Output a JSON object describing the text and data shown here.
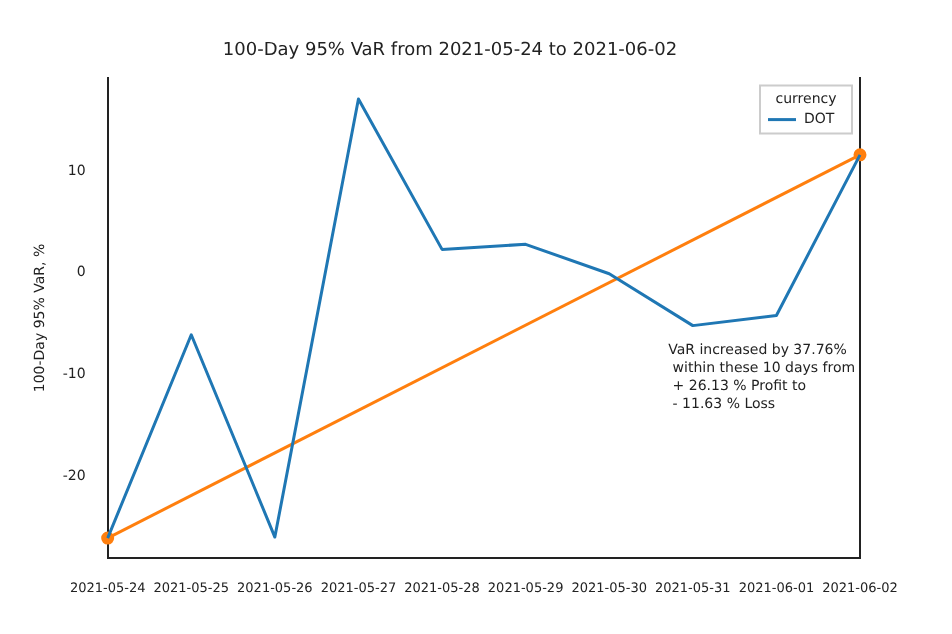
{
  "chart_data": {
    "type": "line",
    "title": "100-Day 95% VaR from 2021-05-24 to 2021-06-02",
    "ylabel": "100-Day 95% VaR, %",
    "legend_title": "currency",
    "categories": [
      "2021-05-24",
      "2021-05-25",
      "2021-05-26",
      "2021-05-27",
      "2021-05-28",
      "2021-05-29",
      "2021-05-30",
      "2021-05-31",
      "2021-06-01",
      "2021-06-02"
    ],
    "series": [
      {
        "name": "DOT",
        "color": "#1f77b4",
        "values": [
          -26.1,
          -6.1,
          -26.0,
          17.1,
          2.3,
          2.8,
          -0.1,
          -5.2,
          -4.2,
          11.6
        ]
      },
      {
        "type": "line",
        "color": "#ff7f0e",
        "marker": "circle",
        "values": [
          -26.1,
          null,
          null,
          null,
          null,
          null,
          null,
          null,
          null,
          11.6
        ]
      }
    ],
    "ylim": [
      -28.1,
      19.2
    ],
    "yticks": [
      -20,
      -10,
      0,
      10
    ],
    "grid": false,
    "legend": "top right",
    "marker": "none",
    "annotations": [
      "VaR increased by 37.76%\n within these 10 days from\n + 26.13 % Profit to\n - 11.63 % Loss"
    ]
  }
}
